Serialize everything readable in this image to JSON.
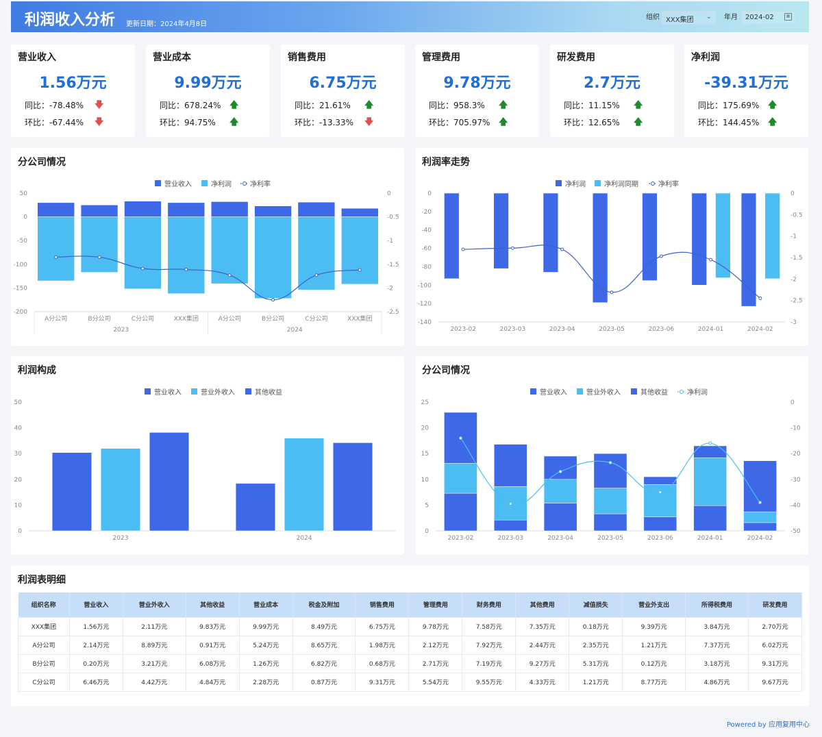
{
  "header": {
    "title": "利润收入分析",
    "update_label": "更新日期：2024年4月8日",
    "org_label": "组织",
    "org_value": "XXX集团",
    "month_label": "年月",
    "month_value": "2024-02"
  },
  "kpis": [
    {
      "title": "营业收入",
      "value": "1.56万元",
      "yoy": "同比：-78.48%",
      "yoy_dir": "down",
      "mom": "环比：-67.44%",
      "mom_dir": "down"
    },
    {
      "title": "营业成本",
      "value": "9.99万元",
      "yoy": "同比：678.24%",
      "yoy_dir": "up",
      "mom": "环比：94.75%",
      "mom_dir": "up"
    },
    {
      "title": "销售费用",
      "value": "6.75万元",
      "yoy": "同比：21.61%",
      "yoy_dir": "up",
      "mom": "环比：-13.33%",
      "mom_dir": "down"
    },
    {
      "title": "管理费用",
      "value": "9.78万元",
      "yoy": "同比：958.3%",
      "yoy_dir": "up",
      "mom": "环比：705.97%",
      "mom_dir": "up"
    },
    {
      "title": "研发费用",
      "value": "2.7万元",
      "yoy": "同比：11.15%",
      "yoy_dir": "up",
      "mom": "环比：12.65%",
      "mom_dir": "up"
    },
    {
      "title": "净利润",
      "value": "-39.31万元",
      "yoy": "同比：175.69%",
      "yoy_dir": "up",
      "mom": "环比：144.45%",
      "mom_dir": "up"
    }
  ],
  "arrows": {
    "up": "🡅",
    "down": "🡇"
  },
  "colors": {
    "dark": "#3d68e8",
    "light": "#4bbdf3",
    "line": "#3d62c9",
    "line2": "#4bbdf3"
  },
  "chart_data": [
    {
      "title": "分公司情况",
      "type": "bar",
      "categories": [
        "A分公司",
        "B分公司",
        "C分公司",
        "XXX集团",
        "A分公司",
        "B分公司",
        "C分公司",
        "XXX集团"
      ],
      "groups": [
        {
          "label": "2023",
          "span": 4
        },
        {
          "label": "2024",
          "span": 4
        }
      ],
      "series": [
        {
          "name": "营业收入",
          "kind": "bar",
          "values": [
            30,
            25,
            33,
            30,
            32,
            23,
            31,
            18
          ]
        },
        {
          "name": "净利润",
          "kind": "bar",
          "values": [
            -135,
            -117,
            -152,
            -162,
            -141,
            -172,
            -154,
            -142
          ]
        },
        {
          "name": "净利率",
          "kind": "line",
          "axis": "right",
          "values": [
            -1.35,
            -1.35,
            -1.59,
            -1.61,
            -1.73,
            -2.25,
            -1.73,
            -1.62
          ]
        }
      ],
      "ylim": [
        -200,
        50
      ],
      "yticks": [
        50,
        0,
        -50,
        -100,
        -150,
        -200
      ],
      "y2lim": [
        -2.5,
        0
      ],
      "y2ticks": [
        0,
        -0.5,
        -1,
        -1.5,
        -2,
        -2.5
      ],
      "legend": "top"
    },
    {
      "title": "利润率走势",
      "type": "bar",
      "categories": [
        "2023-02",
        "2023-03",
        "2023-04",
        "2023-05",
        "2023-06",
        "2024-01",
        "2024-02"
      ],
      "series": [
        {
          "name": "净利润",
          "kind": "bar",
          "values": [
            -93,
            -82,
            -86,
            -119,
            -95,
            -100,
            -123
          ]
        },
        {
          "name": "净利润同期",
          "kind": "bar",
          "values": [
            null,
            null,
            null,
            null,
            null,
            -92,
            -93
          ]
        },
        {
          "name": "净利率",
          "kind": "line",
          "axis": "right",
          "values": [
            -1.31,
            -1.28,
            -1.31,
            -2.31,
            -1.47,
            -1.55,
            -2.45
          ]
        }
      ],
      "ylim": [
        -140,
        0
      ],
      "yticks": [
        0,
        -20,
        -40,
        -60,
        -80,
        -100,
        -120,
        -140
      ],
      "y2lim": [
        -3,
        0
      ],
      "y2ticks": [
        0,
        -0.5,
        -1,
        -1.5,
        -2,
        -2.5,
        -3
      ],
      "legend": "top"
    },
    {
      "title": "利润构成",
      "type": "bar",
      "categories": [
        "2023",
        "2024"
      ],
      "series": [
        {
          "name": "营业收入",
          "kind": "bar",
          "values": [
            30.4,
            18.4
          ]
        },
        {
          "name": "营业外收入",
          "kind": "bar",
          "values": [
            32,
            36
          ]
        },
        {
          "name": "其他收益",
          "kind": "bar",
          "values": [
            38.2,
            34.2
          ]
        }
      ],
      "ylim": [
        0,
        50
      ],
      "yticks": [
        50,
        40,
        30,
        20,
        10,
        0
      ],
      "legend": "top"
    },
    {
      "title": "分公司情况",
      "type": "bar",
      "categories": [
        "2023-02",
        "2023-03",
        "2023-04",
        "2023-05",
        "2023-06",
        "2024-01",
        "2024-02"
      ],
      "series": [
        {
          "name": "营业收入",
          "kind": "bar",
          "values": [
            7.3,
            2.1,
            5.4,
            3.3,
            2.7,
            4.9,
            1.6
          ]
        },
        {
          "name": "营业外收入",
          "kind": "bar",
          "values": [
            5.8,
            6.5,
            4.6,
            5.0,
            6.3,
            9.3,
            2.1
          ]
        },
        {
          "name": "其他收益",
          "kind": "bar",
          "values": [
            9.9,
            8.2,
            4.5,
            6.7,
            1.5,
            2.3,
            9.9
          ]
        },
        {
          "name": "净利润",
          "kind": "line",
          "axis": "right",
          "values": [
            -14,
            -39.5,
            -27,
            -23.5,
            -35,
            -16,
            -39
          ]
        }
      ],
      "ylim": [
        0,
        25
      ],
      "yticks": [
        25,
        20,
        15,
        10,
        5,
        0
      ],
      "y2lim": [
        -50,
        0
      ],
      "y2ticks": [
        0,
        -10,
        -20,
        -30,
        -40,
        -50
      ],
      "legend": "top"
    }
  ],
  "table": {
    "title": "利润表明细",
    "columns": [
      "组织名称",
      "营业收入",
      "营业外收入",
      "其他收益",
      "营业成本",
      "税金及附加",
      "销售费用",
      "管理费用",
      "财务费用",
      "其他费用",
      "减值损失",
      "营业外支出",
      "所得税费用",
      "研发费用"
    ],
    "rows": [
      [
        "XXX集团",
        "1.56万元",
        "2.11万元",
        "9.83万元",
        "9.99万元",
        "8.49万元",
        "6.75万元",
        "9.78万元",
        "7.58万元",
        "7.35万元",
        "0.18万元",
        "9.39万元",
        "3.84万元",
        "2.70万元"
      ],
      [
        "A分公司",
        "2.14万元",
        "8.89万元",
        "0.91万元",
        "5.24万元",
        "8.65万元",
        "1.98万元",
        "2.12万元",
        "7.92万元",
        "2.44万元",
        "2.35万元",
        "1.21万元",
        "7.37万元",
        "6.02万元"
      ],
      [
        "B分公司",
        "0.20万元",
        "3.21万元",
        "6.08万元",
        "1.26万元",
        "6.82万元",
        "0.68万元",
        "2.71万元",
        "7.19万元",
        "9.27万元",
        "5.31万元",
        "0.12万元",
        "3.18万元",
        "9.31万元"
      ],
      [
        "C分公司",
        "6.46万元",
        "4.42万元",
        "4.84万元",
        "2.28万元",
        "0.87万元",
        "9.31万元",
        "5.54万元",
        "9.55万元",
        "4.33万元",
        "1.21万元",
        "8.77万元",
        "4.86万元",
        "9.67万元"
      ]
    ]
  },
  "footer": "Powered by 应用复用中心"
}
